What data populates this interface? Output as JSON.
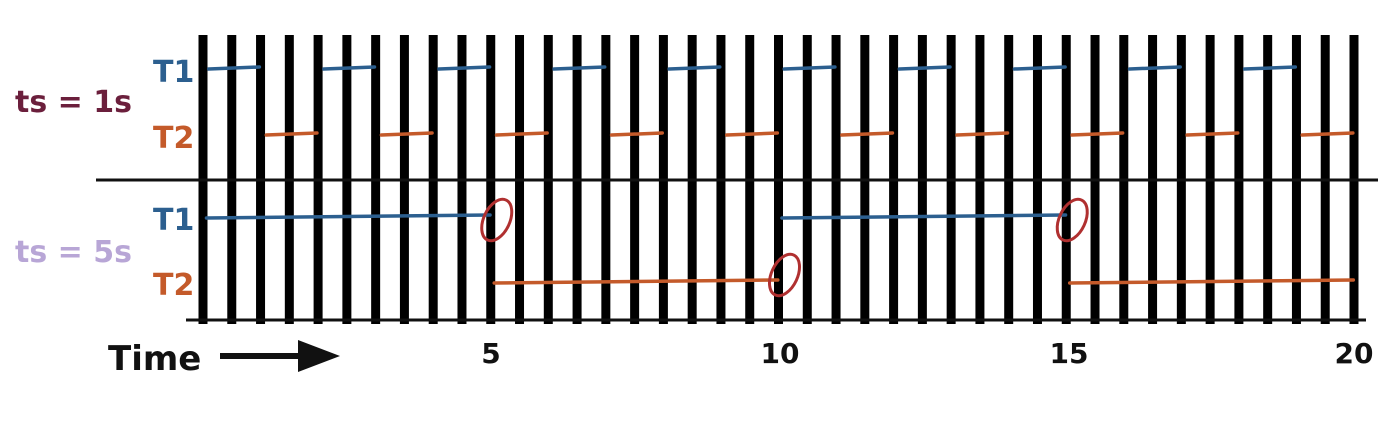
{
  "rows": [
    {
      "label": "ts = 1s",
      "label_color": "#6b1f3c",
      "threads": [
        {
          "name": "T1",
          "color": "#2c5f8f",
          "segments": [
            [
              0,
              1
            ],
            [
              2,
              3
            ],
            [
              4,
              5
            ],
            [
              6,
              7
            ],
            [
              8,
              9
            ],
            [
              10,
              11
            ],
            [
              12,
              13
            ],
            [
              14,
              15
            ],
            [
              16,
              17
            ],
            [
              18,
              19
            ]
          ]
        },
        {
          "name": "T2",
          "color": "#c45a2a",
          "segments": [
            [
              1,
              2
            ],
            [
              3,
              4
            ],
            [
              5,
              6
            ],
            [
              7,
              8
            ],
            [
              9,
              10
            ],
            [
              11,
              12
            ],
            [
              13,
              14
            ],
            [
              15,
              16
            ],
            [
              17,
              18
            ],
            [
              19,
              20
            ]
          ]
        }
      ]
    },
    {
      "label": "ts = 5s",
      "label_color": "#b8a6d6",
      "threads": [
        {
          "name": "T1",
          "color": "#2c5f8f",
          "segments": [
            [
              0,
              5
            ],
            [
              10,
              15
            ]
          ]
        },
        {
          "name": "T2",
          "color": "#c45a2a",
          "segments": [
            [
              5,
              10
            ],
            [
              15,
              20
            ]
          ]
        }
      ],
      "switch_marks": [
        5,
        10,
        15
      ],
      "switch_color": "#b03030"
    }
  ],
  "time_axis": {
    "label": "Time",
    "ticks": [
      {
        "value": 5,
        "label": "5"
      },
      {
        "value": 10,
        "label": "10"
      },
      {
        "value": 15,
        "label": "15"
      },
      {
        "value": 20,
        "label": "20"
      }
    ],
    "range": [
      0,
      20
    ]
  },
  "divider_color": "#111111"
}
